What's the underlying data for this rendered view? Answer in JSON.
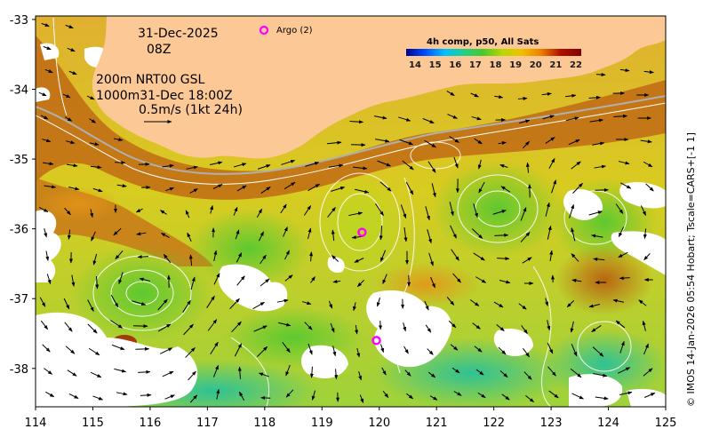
{
  "map": {
    "date_label": "31-Dec-2025",
    "time_label": "08Z",
    "isobath_line1": "200m  NRT00 GSL",
    "isobath_line2": "1000m31-Dec 18:00Z",
    "vector_scale": "0.5m/s (1kt 24h)",
    "argo_label": "Argo (2)",
    "colorbar_title": "4h comp, p50, All Sats",
    "colorbar_ticks": [
      "14",
      "15",
      "16",
      "17",
      "18",
      "19",
      "20",
      "21",
      "22"
    ],
    "credit": "© IMOS 14-Jan-2026 05:54 Hobart; Tscale=CARS+[-1 1]",
    "x_ticks": [
      "114",
      "115",
      "116",
      "117",
      "118",
      "119",
      "120",
      "121",
      "122",
      "123",
      "124",
      "125"
    ],
    "y_ticks": [
      "-33",
      "-34",
      "-35",
      "-36",
      "-37",
      "-38"
    ],
    "lon_range": [
      114,
      125
    ],
    "lat_range": [
      -38.55,
      -32.95
    ],
    "argo_floats": [
      {
        "lon": 119.7,
        "lat": -36.05
      },
      {
        "lon": 119.95,
        "lat": -37.6
      }
    ],
    "colors": {
      "land": "#fcc895",
      "argo": "#ff00ff",
      "colorbar": [
        "#00008f",
        "#0050ff",
        "#00c0ff",
        "#20d08a",
        "#4cc82a",
        "#b8d800",
        "#f0c000",
        "#f08000",
        "#b01000",
        "#800000"
      ]
    }
  }
}
